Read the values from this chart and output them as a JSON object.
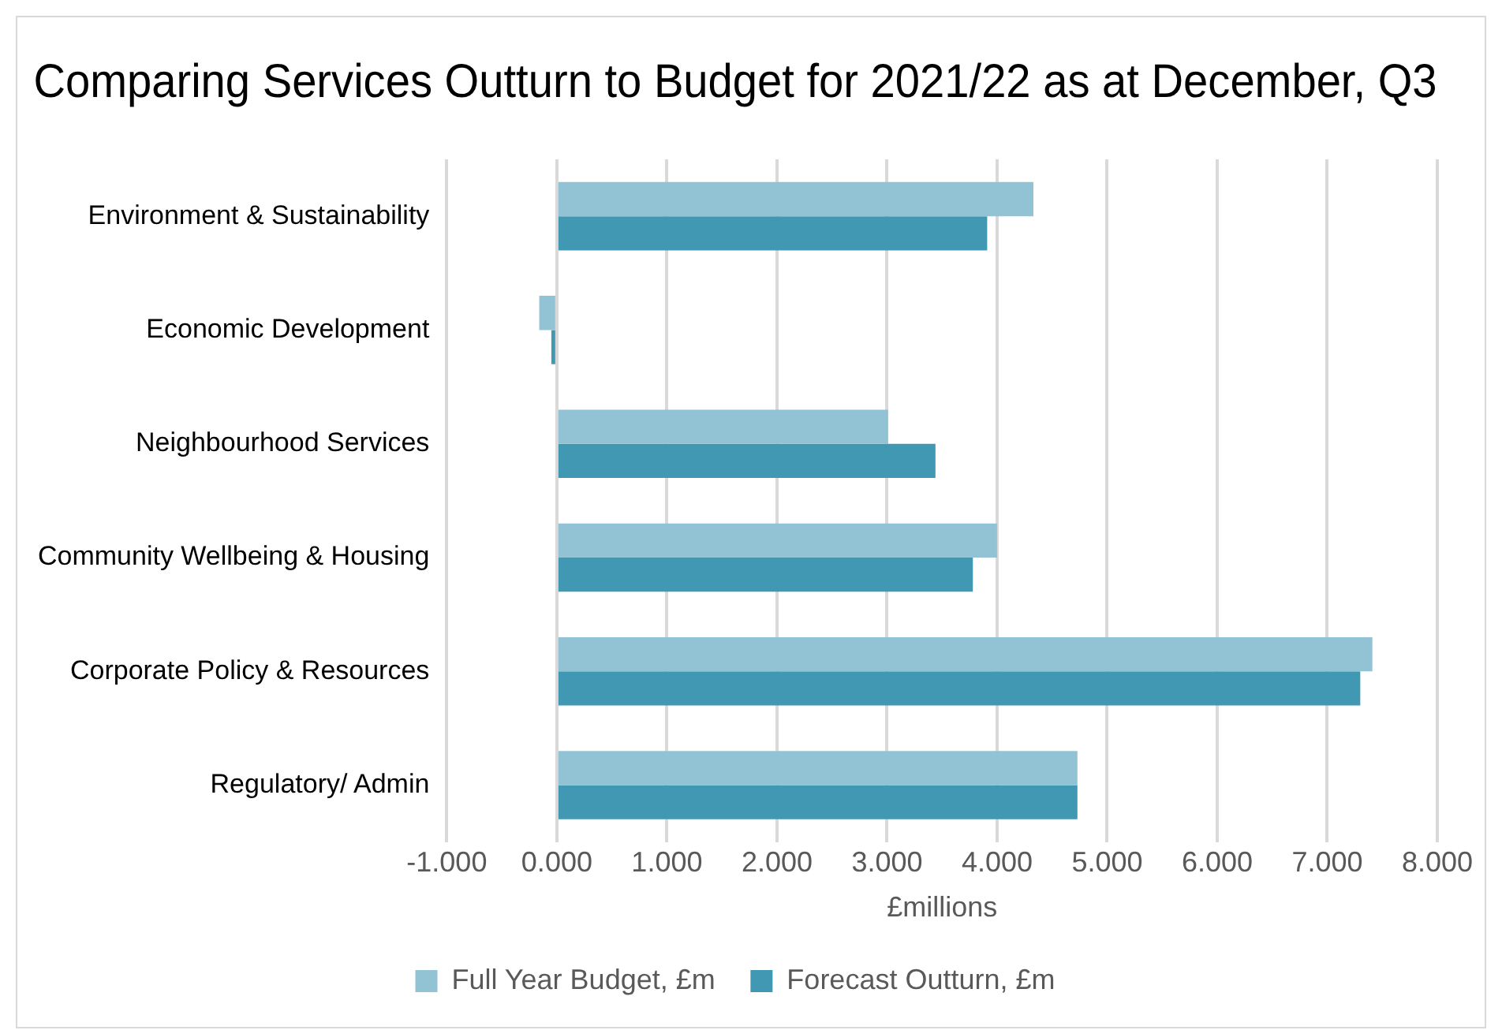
{
  "chart_data": {
    "type": "bar",
    "orientation": "horizontal",
    "title": "Comparing Services Outturn to Budget for 2021/22 as at December, Q3",
    "xlabel": "£millions",
    "categories": [
      "Environment & Sustainability",
      "Economic Development",
      "Neighbourhood Services",
      "Community Wellbeing & Housing",
      "Corporate Policy & Resources",
      "Regulatory/ Admin"
    ],
    "series": [
      {
        "name": "Full Year Budget, £m",
        "color": "#92c3d4",
        "values": [
          4.33,
          -0.16,
          3.01,
          4.0,
          7.41,
          4.73
        ]
      },
      {
        "name": "Forecast Outturn, £m",
        "color": "#4198b2",
        "values": [
          3.91,
          -0.05,
          3.44,
          3.78,
          7.3,
          4.73
        ]
      }
    ],
    "xlim": [
      -1,
      8
    ],
    "xticks": [
      {
        "value": -1,
        "label": "-1.000"
      },
      {
        "value": 0,
        "label": "0.000"
      },
      {
        "value": 1,
        "label": "1.000"
      },
      {
        "value": 2,
        "label": "2.000"
      },
      {
        "value": 3,
        "label": "3.000"
      },
      {
        "value": 4,
        "label": "4.000"
      },
      {
        "value": 5,
        "label": "5.000"
      },
      {
        "value": 6,
        "label": "6.000"
      },
      {
        "value": 7,
        "label": "7.000"
      },
      {
        "value": 8,
        "label": "8.000"
      }
    ],
    "grid": "x",
    "legend": "bottom"
  }
}
